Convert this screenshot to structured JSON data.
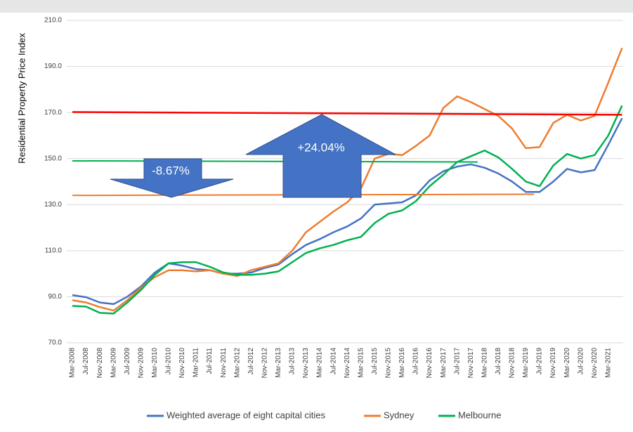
{
  "chart_data": {
    "type": "line",
    "y_axis_label": "Residential Property Price Index",
    "categories": [
      "Mar-2008",
      "Jul-2008",
      "Nov-2008",
      "Mar-2009",
      "Jul-2009",
      "Nov-2009",
      "Mar-2010",
      "Jul-2010",
      "Nov-2010",
      "Mar-2011",
      "Jul-2011",
      "Nov-2011",
      "Mar-2012",
      "Jul-2012",
      "Nov-2012",
      "Mar-2013",
      "Jul-2013",
      "Nov-2013",
      "Mar-2014",
      "Jul-2014",
      "Nov-2014",
      "Mar-2015",
      "Jul-2015",
      "Nov-2015",
      "Mar-2016",
      "Jul-2016",
      "Nov-2016",
      "Mar-2017",
      "Jul-2017",
      "Nov-2017",
      "Mar-2018",
      "Jul-2018",
      "Nov-2018",
      "Mar-2019",
      "Jul-2019",
      "Nov-2019",
      "Mar-2020",
      "Jul-2020",
      "Nov-2020",
      "Mar-2021",
      null
    ],
    "series": [
      {
        "name": "Weighted average of eight capital cities",
        "color": "#4472c4",
        "values": [
          90.7,
          89.8,
          87.5,
          86.8,
          90,
          94.5,
          100.5,
          104.5,
          103.5,
          102,
          101.5,
          100,
          100,
          100.5,
          102.5,
          104,
          108.5,
          112.5,
          115,
          118,
          120.5,
          124,
          130,
          130.5,
          131,
          134,
          140.5,
          144.5,
          146.5,
          147.5,
          146,
          143.5,
          140,
          135.5,
          135.5,
          140,
          145.5,
          144,
          145,
          156,
          167.5
        ]
      },
      {
        "name": "Sydney",
        "color": "#ed7d31",
        "values": [
          88.5,
          87.5,
          85.5,
          84,
          88.5,
          94,
          98.5,
          101.5,
          101.5,
          101,
          101.5,
          100,
          99,
          101.5,
          103,
          104.5,
          110,
          118,
          122.5,
          127,
          131,
          137,
          150,
          152,
          151.5,
          155.5,
          160,
          172,
          177,
          174.5,
          171.5,
          168.5,
          163,
          154.5,
          155,
          165.5,
          169,
          166.5,
          168.5,
          183,
          198
        ]
      },
      {
        "name": "Melbourne",
        "color": "#00b050",
        "values": [
          86,
          85.7,
          83,
          82.7,
          87.5,
          93,
          99.5,
          104.5,
          105,
          105,
          103,
          100.5,
          99.5,
          99.5,
          100,
          101,
          105,
          109,
          111,
          112.5,
          114.5,
          116,
          122,
          126,
          127.5,
          131.5,
          138,
          143,
          148.5,
          151,
          153.5,
          150.5,
          145.5,
          140,
          138,
          147,
          152,
          150,
          151.5,
          160,
          173
        ]
      }
    ],
    "trend_lines": [
      {
        "color": "#ff0000",
        "x": [
          0,
          40
        ],
        "values": [
          170.2,
          169
        ]
      },
      {
        "color": "#00b050",
        "x": [
          0,
          29.5
        ],
        "values": [
          149,
          148.5
        ]
      },
      {
        "color": "#ed7d31",
        "x": [
          0,
          33.6
        ],
        "values": [
          134,
          134.5
        ]
      }
    ],
    "annotations": [
      {
        "text": "-8.67%"
      },
      {
        "text": "+24.04%"
      }
    ],
    "ylim": [
      70,
      210
    ],
    "yticks": [
      {
        "value": 70,
        "label": "70.0"
      },
      {
        "value": 90,
        "label": "90.0"
      },
      {
        "value": 110,
        "label": "110.0"
      },
      {
        "value": 130,
        "label": "130.0"
      },
      {
        "value": 150,
        "label": "150.0"
      },
      {
        "value": 170,
        "label": "170.0"
      },
      {
        "value": 190,
        "label": "190.0"
      },
      {
        "value": 210,
        "label": "210.0"
      }
    ],
    "grid": true,
    "legend": "bottom"
  }
}
